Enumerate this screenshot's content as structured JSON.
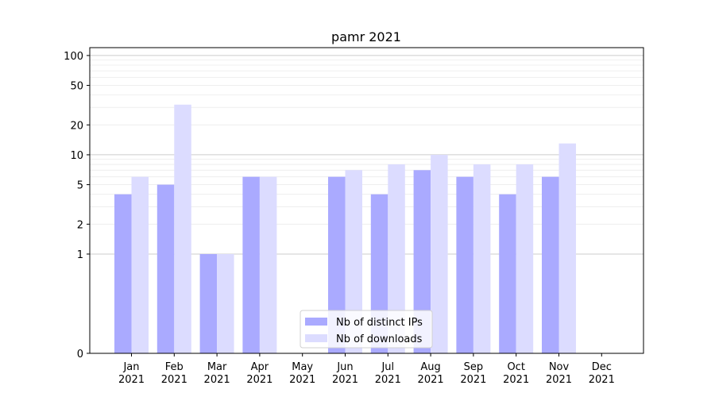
{
  "chart_data": {
    "type": "bar",
    "title": "pamr 2021",
    "xlabel": "",
    "ylabel": "",
    "y_scale": "symlog",
    "ylim": [
      0,
      120
    ],
    "y_ticks": [
      0,
      1,
      2,
      5,
      10,
      20,
      50,
      100
    ],
    "grid": true,
    "legend_position": "bottom-center",
    "categories": [
      [
        "Jan",
        "2021"
      ],
      [
        "Feb",
        "2021"
      ],
      [
        "Mar",
        "2021"
      ],
      [
        "Apr",
        "2021"
      ],
      [
        "May",
        "2021"
      ],
      [
        "Jun",
        "2021"
      ],
      [
        "Jul",
        "2021"
      ],
      [
        "Aug",
        "2021"
      ],
      [
        "Sep",
        "2021"
      ],
      [
        "Oct",
        "2021"
      ],
      [
        "Nov",
        "2021"
      ],
      [
        "Dec",
        "2021"
      ]
    ],
    "series": [
      {
        "name": "Nb of distinct IPs",
        "color": "#aaaaff",
        "values": [
          4,
          5,
          1,
          6,
          0,
          6,
          4,
          7,
          6,
          4,
          6,
          0
        ]
      },
      {
        "name": "Nb of downloads",
        "color": "#dcdcff",
        "values": [
          6,
          32,
          1,
          6,
          0,
          7,
          8,
          10,
          8,
          8,
          13,
          0
        ]
      }
    ]
  }
}
